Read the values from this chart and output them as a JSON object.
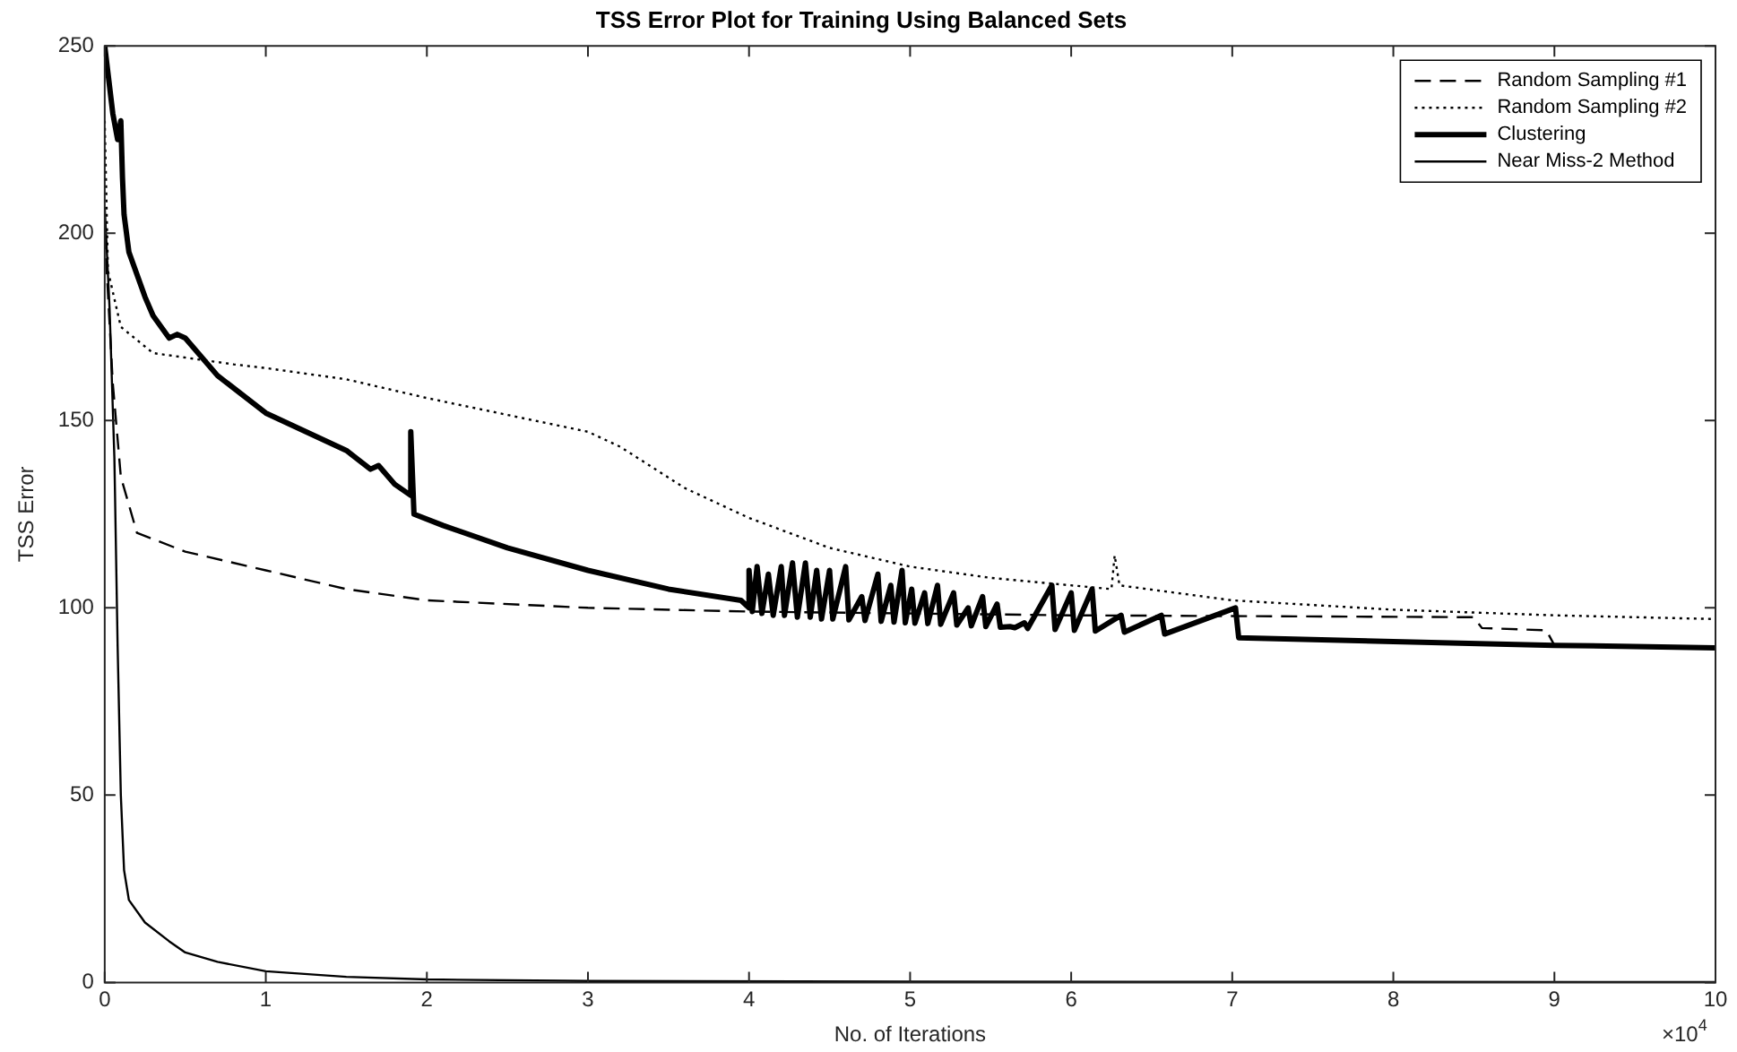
{
  "chart_data": {
    "type": "line",
    "title": "TSS Error Plot for Training Using Balanced Sets",
    "xlabel": "No. of Iterations",
    "ylabel": "TSS Error",
    "xlim": [
      0,
      10
    ],
    "xticks": [
      0,
      1,
      2,
      3,
      4,
      5,
      6,
      7,
      8,
      9,
      10
    ],
    "ylim": [
      0,
      250
    ],
    "yticks": [
      0,
      50,
      100,
      150,
      200,
      250
    ],
    "grid": false,
    "legend": "top right",
    "marker": "none",
    "annotations": [
      "×10$^{4}$"
    ],
    "series": [
      {
        "name": "Random Sampling #1",
        "color": "#000000",
        "line_style": "dashed",
        "x": [
          0,
          0.05,
          0.08,
          0.1,
          0.2,
          0.5,
          1,
          1.5,
          2,
          3,
          4,
          6,
          8.5,
          8.55,
          8.95,
          9.0,
          10
        ],
        "values": [
          200,
          160,
          145,
          135,
          120,
          115,
          110,
          105,
          102,
          100,
          99,
          98,
          97.5,
          94.6,
          94,
          90,
          89.5
        ]
      },
      {
        "name": "Random Sampling #2",
        "color": "#000000",
        "line_style": "dotted",
        "x": [
          0,
          0.02,
          0.1,
          0.3,
          0.8,
          1,
          1.5,
          1.8,
          2,
          3,
          3.2,
          3.6,
          4,
          4.5,
          5,
          5.5,
          6.25,
          6.27,
          6.3,
          7,
          8,
          9,
          10
        ],
        "values": [
          230,
          190,
          175,
          168,
          165,
          164,
          161,
          158,
          156,
          147,
          143,
          132,
          124,
          116,
          111,
          108,
          105,
          114,
          106,
          102,
          99.5,
          98,
          97
        ]
      },
      {
        "name": "Clustering",
        "color": "#000000",
        "line_style": "solid",
        "x": [
          0,
          0.05,
          0.08,
          0.1,
          0.11,
          0.12,
          0.15,
          0.25,
          0.3,
          0.4,
          0.45,
          0.5,
          0.7,
          1,
          1.5,
          1.65,
          1.7,
          1.8,
          1.9,
          1.9,
          1.92,
          2.1,
          2.5,
          3,
          3.5,
          3.95,
          4.0,
          4.0,
          4.02,
          4.05,
          4.08,
          4.12,
          4.15,
          4.2,
          4.22,
          4.27,
          4.3,
          4.35,
          4.38,
          4.42,
          4.45,
          4.5,
          4.52,
          4.6,
          4.62,
          4.7,
          4.72,
          4.8,
          4.82,
          4.88,
          4.9,
          4.95,
          4.97,
          5.01,
          5.03,
          5.09,
          5.11,
          5.17,
          5.19,
          5.27,
          5.29,
          5.36,
          5.38,
          5.45,
          5.47,
          5.54,
          5.56,
          5.62,
          5.65,
          5.71,
          5.73,
          5.88,
          5.9,
          6.0,
          6.02,
          6.13,
          6.15,
          6.31,
          6.33,
          6.56,
          6.58,
          7.02,
          7.04,
          8,
          9,
          10
        ],
        "values": [
          250,
          232,
          225,
          230,
          215,
          205,
          195,
          183,
          178,
          172,
          173,
          172,
          162,
          152,
          142,
          137,
          138,
          133,
          130,
          147,
          125,
          122,
          116,
          110,
          105,
          102,
          100,
          110,
          99,
          111,
          98.5,
          109,
          98,
          111,
          98,
          112,
          97.5,
          112,
          97.5,
          110,
          97,
          110,
          97,
          111,
          96.8,
          103,
          96.6,
          109,
          96.4,
          106,
          96.2,
          110,
          96,
          105,
          95.9,
          104,
          95.8,
          106,
          95.6,
          104,
          95.4,
          100,
          95.2,
          103,
          95,
          101,
          94.8,
          95,
          94.7,
          96,
          94.5,
          106,
          94.2,
          104,
          94,
          105,
          93.8,
          98,
          93.5,
          98,
          93,
          100,
          92,
          91,
          90,
          89.3
        ]
      },
      {
        "name": "Near Miss-2 Method",
        "color": "#000000",
        "line_style": "solid",
        "x": [
          0,
          0.03,
          0.06,
          0.08,
          0.1,
          0.12,
          0.15,
          0.25,
          0.4,
          0.5,
          0.7,
          1,
          1.5,
          2,
          3,
          5,
          10
        ],
        "values": [
          207,
          180,
          140,
          90,
          50,
          30,
          22,
          16,
          11,
          8,
          5.5,
          3,
          1.5,
          0.8,
          0.4,
          0.2,
          0.1
        ]
      }
    ]
  }
}
